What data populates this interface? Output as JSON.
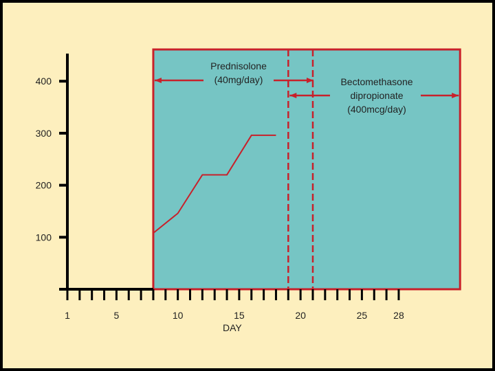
{
  "chart_data": {
    "type": "line",
    "xlabel": "DAY",
    "x_ticks": [
      1,
      5,
      10,
      15,
      20,
      25,
      28
    ],
    "y_ticks": [
      100,
      200,
      300,
      400
    ],
    "xlim": [
      1,
      33
    ],
    "ylim": [
      0,
      460
    ],
    "grid": false,
    "series": [
      {
        "x": [
          8,
          10,
          12,
          14,
          16,
          18
        ],
        "y": [
          108,
          146,
          220,
          220,
          296,
          296
        ]
      }
    ],
    "annotations": [
      {
        "id": "pred",
        "text_lines": [
          "Prednisolone",
          "(40mg/day)"
        ],
        "x_range": [
          8,
          21
        ]
      },
      {
        "id": "beclo",
        "text_lines": [
          "Bectomethasone",
          "dipropionate",
          "(400mcg/day)"
        ],
        "x_range": [
          19,
          33
        ]
      }
    ],
    "treatment_region_x": [
      8,
      33
    ],
    "vertical_markers_x": [
      19,
      21
    ],
    "colors": {
      "background": "#fdefbe",
      "region_fill": "#76c5c4",
      "accent_red": "#c8202a",
      "axis": "#000000"
    }
  }
}
